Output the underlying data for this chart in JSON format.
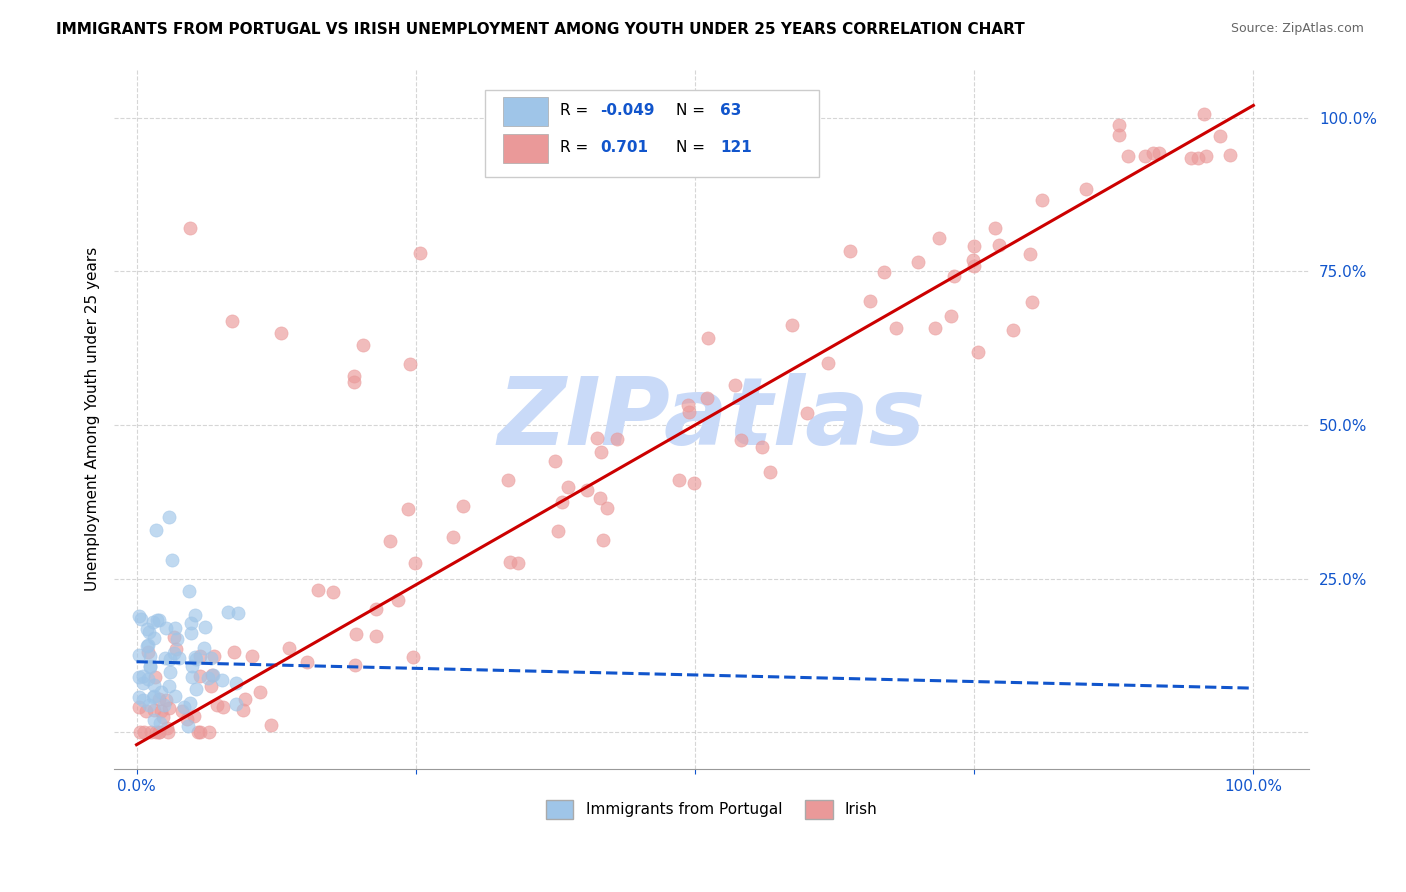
{
  "title": "IMMIGRANTS FROM PORTUGAL VS IRISH UNEMPLOYMENT AMONG YOUTH UNDER 25 YEARS CORRELATION CHART",
  "source": "Source: ZipAtlas.com",
  "ylabel": "Unemployment Among Youth under 25 years",
  "xlim": [
    -0.02,
    1.05
  ],
  "ylim": [
    -0.06,
    1.08
  ],
  "blue_R": -0.049,
  "blue_N": 63,
  "pink_R": 0.701,
  "pink_N": 121,
  "blue_scatter_color": "#9fc5e8",
  "pink_scatter_color": "#ea9999",
  "blue_line_color": "#1155cc",
  "pink_line_color": "#cc0000",
  "watermark": "ZIPatlas",
  "watermark_color": "#c9daf8",
  "legend_label_blue": "Immigrants from Portugal",
  "legend_label_pink": "Irish",
  "tick_color": "#1155cc",
  "title_fontsize": 11,
  "axis_fontsize": 11,
  "tick_fontsize": 11,
  "figsize": [
    14.06,
    8.92
  ],
  "dpi": 100
}
